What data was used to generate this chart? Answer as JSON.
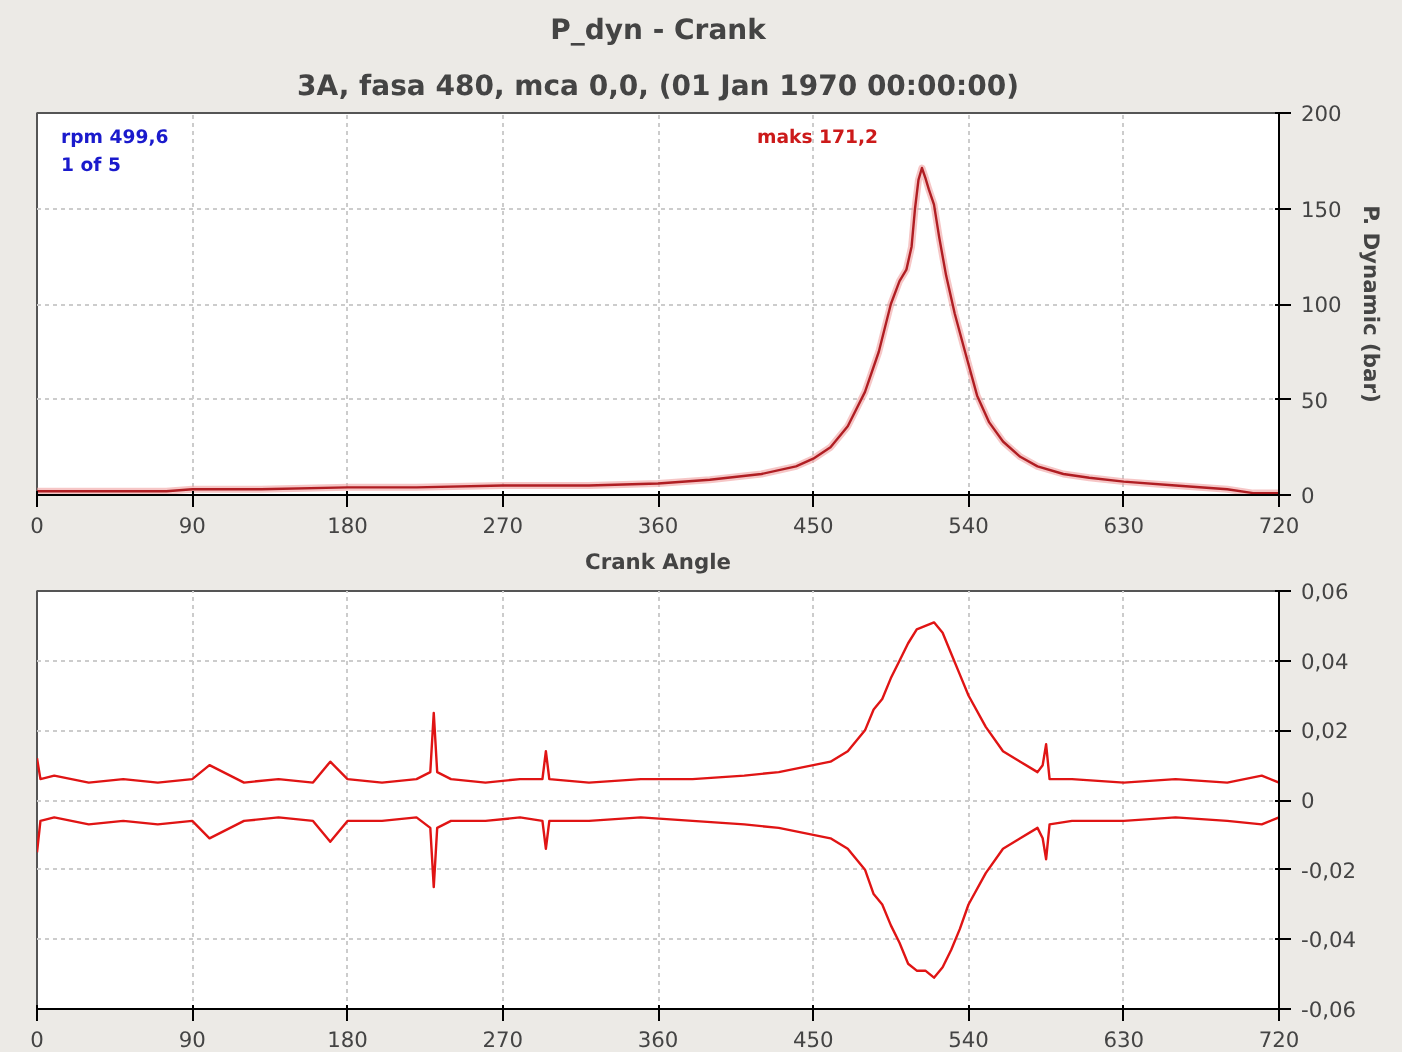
{
  "chart_data": [
    {
      "type": "line",
      "title": "P_dyn - Crank",
      "subtitle": "3A, fasa 480, mca 0,0, (01 Jan 1970 00:00:00)",
      "xlabel": "Crank Angle",
      "ylabel": "P. Dynamic (bar)",
      "annotations": [
        "rpm 499,6",
        "1 of 5",
        "maks 171,2"
      ],
      "x": [
        0,
        40,
        75,
        90,
        130,
        180,
        220,
        270,
        320,
        360,
        390,
        420,
        440,
        450,
        460,
        470,
        480,
        488,
        495,
        500,
        504,
        507,
        509,
        511,
        513,
        515,
        517,
        520,
        523,
        527,
        532,
        538,
        545,
        552,
        560,
        570,
        580,
        595,
        610,
        630,
        660,
        690,
        705,
        720
      ],
      "series": [
        {
          "color": "#b01e23",
          "values": [
            2,
            2,
            2,
            3,
            3,
            4,
            4,
            5,
            5,
            6,
            8,
            11,
            15,
            19,
            25,
            36,
            54,
            75,
            100,
            112,
            118,
            130,
            150,
            165,
            171.2,
            166,
            160,
            152,
            135,
            115,
            95,
            75,
            52,
            38,
            28,
            20,
            15,
            11,
            9,
            7,
            5,
            3,
            1,
            1
          ]
        }
      ],
      "xlim": [
        0,
        720
      ],
      "xticks": [
        0,
        90,
        180,
        270,
        360,
        450,
        540,
        630,
        720
      ],
      "ylim": [
        0,
        200
      ],
      "yticks": [
        0,
        50,
        100,
        150,
        200
      ],
      "grid": true,
      "line_style": "solid",
      "marker": "none"
    },
    {
      "type": "line",
      "x": [
        0,
        2,
        10,
        30,
        50,
        70,
        90,
        100,
        120,
        140,
        160,
        170,
        180,
        200,
        220,
        228,
        230,
        232,
        240,
        260,
        280,
        293,
        295,
        297,
        320,
        350,
        380,
        410,
        430,
        450,
        460,
        470,
        480,
        485,
        490,
        495,
        500,
        505,
        510,
        515,
        520,
        525,
        530,
        535,
        540,
        550,
        560,
        570,
        580,
        583,
        585,
        587,
        600,
        630,
        660,
        690,
        710,
        720
      ],
      "series": [
        {
          "color": "#e01414",
          "values": [
            0.012,
            0.006,
            0.007,
            0.005,
            0.006,
            0.005,
            0.006,
            0.01,
            0.005,
            0.006,
            0.005,
            0.011,
            0.006,
            0.005,
            0.006,
            0.008,
            0.025,
            0.008,
            0.006,
            0.005,
            0.006,
            0.006,
            0.014,
            0.006,
            0.005,
            0.006,
            0.006,
            0.007,
            0.008,
            0.01,
            0.011,
            0.014,
            0.02,
            0.026,
            0.029,
            0.035,
            0.04,
            0.045,
            0.049,
            0.05,
            0.051,
            0.048,
            0.042,
            0.036,
            0.03,
            0.021,
            0.014,
            0.011,
            0.008,
            0.01,
            0.016,
            0.006,
            0.006,
            0.005,
            0.006,
            0.005,
            0.007,
            0.005
          ]
        },
        {
          "color": "#e01414",
          "values": [
            -0.015,
            -0.006,
            -0.005,
            -0.007,
            -0.006,
            -0.007,
            -0.006,
            -0.011,
            -0.006,
            -0.005,
            -0.006,
            -0.012,
            -0.006,
            -0.006,
            -0.005,
            -0.008,
            -0.025,
            -0.008,
            -0.006,
            -0.006,
            -0.005,
            -0.006,
            -0.014,
            -0.006,
            -0.006,
            -0.005,
            -0.006,
            -0.007,
            -0.008,
            -0.01,
            -0.011,
            -0.014,
            -0.02,
            -0.027,
            -0.03,
            -0.036,
            -0.041,
            -0.047,
            -0.049,
            -0.049,
            -0.051,
            -0.048,
            -0.043,
            -0.037,
            -0.03,
            -0.021,
            -0.014,
            -0.011,
            -0.008,
            -0.011,
            -0.017,
            -0.007,
            -0.006,
            -0.006,
            -0.005,
            -0.006,
            -0.007,
            -0.005
          ]
        }
      ],
      "xlim": [
        0,
        720
      ],
      "xticks": [
        0,
        90,
        180,
        270,
        360,
        450,
        540,
        630,
        720
      ],
      "ylim": [
        -0.06,
        0.06
      ],
      "yticks": [
        {
          "value": -0.06,
          "label": "-0,06"
        },
        {
          "value": -0.04,
          "label": "-0,04"
        },
        {
          "value": -0.02,
          "label": "-0,02"
        },
        0,
        {
          "value": 0.02,
          "label": "0,02"
        },
        {
          "value": 0.04,
          "label": "0,04"
        },
        {
          "value": 0.06,
          "label": "0,06"
        }
      ],
      "grid": true,
      "line_style": "solid",
      "marker": "none"
    }
  ]
}
